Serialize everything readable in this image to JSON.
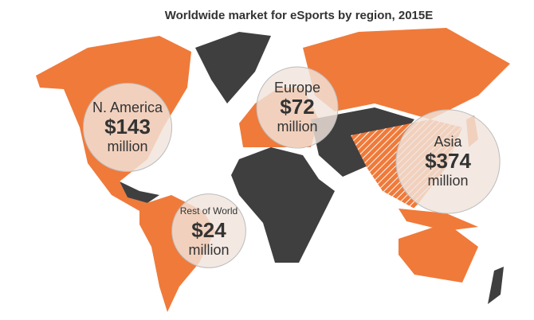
{
  "title": "Worldwide market for eSports by region, 2015E",
  "regions": [
    {
      "name": "N. America",
      "value": 143,
      "value_label": "$143",
      "unit": "million"
    },
    {
      "name": "Europe",
      "value": 72,
      "value_label": "$72",
      "unit": "million"
    },
    {
      "name": "Asia",
      "value": 374,
      "value_label": "$374",
      "unit": "million"
    },
    {
      "name": "Rest of World",
      "value": 24,
      "value_label": "$24",
      "unit": "million"
    }
  ]
}
